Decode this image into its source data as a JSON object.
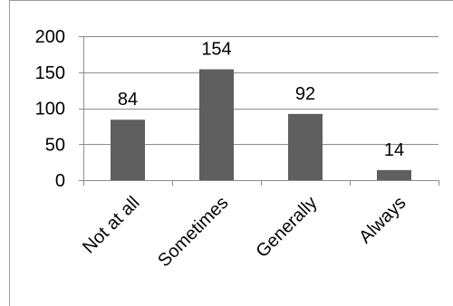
{
  "chart_data": {
    "type": "bar",
    "title": "",
    "xlabel": "",
    "ylabel": "",
    "categories": [
      "Not at all",
      "Sometimes",
      "Generally",
      "Always"
    ],
    "values": [
      84,
      154,
      92,
      14
    ],
    "ylim": [
      0,
      200
    ],
    "yticks": [
      0,
      50,
      100,
      150,
      200
    ],
    "grid": true,
    "data_labels": true,
    "legend": "none",
    "colors": {
      "bar": "#5f5f5f",
      "axis": "#8c8c8c",
      "grid": "#8c8c8c",
      "text": "#000000"
    }
  }
}
